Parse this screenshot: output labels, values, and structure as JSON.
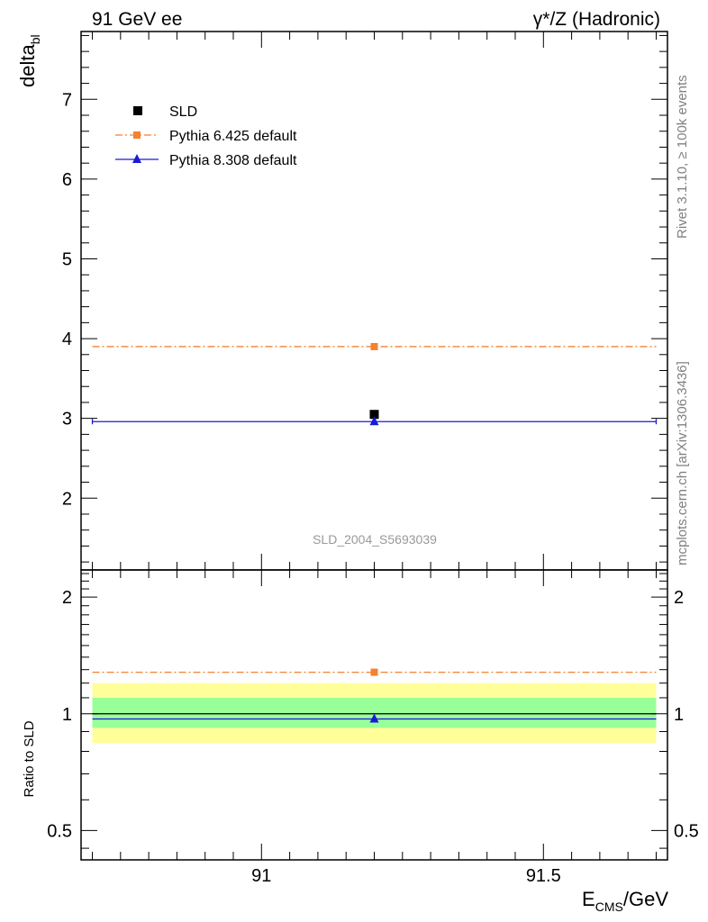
{
  "header": {
    "left": "91 GeV ee",
    "right": "γ*/Z (Hadronic)"
  },
  "side": {
    "rivet": "Rivet 3.1.10, ≥ 100k events",
    "mcplots": "mcplots.cern.ch [arXiv:1306.3436]"
  },
  "analysis_label": "SLD_2004_S5693039",
  "colors": {
    "data": "#000000",
    "pythia6": "#f5812f",
    "pythia8": "#1a1ad6",
    "band_inner": "#99ff99",
    "band_outer": "#ffff99",
    "frame": "#000000",
    "side_text": "#808080"
  },
  "chart_data": [
    {
      "type": "scatter",
      "panel": "main",
      "ylabel_main": "delta",
      "ylabel_sub": "bl",
      "xlim": [
        90.68,
        91.72
      ],
      "ylim": [
        1.1,
        7.85
      ],
      "yticks": [
        2,
        3,
        4,
        5,
        6,
        7
      ],
      "x_minor_step": 0.05,
      "y_minor_step": 0.2,
      "legend_position": "top-left",
      "series": [
        {
          "name": "SLD",
          "marker": "square",
          "x": [
            91.2
          ],
          "y": [
            3.05
          ]
        },
        {
          "name": "Pythia 6.425 default",
          "marker": "square",
          "line": "dash-dot",
          "x": [
            91.2
          ],
          "y": [
            3.9
          ],
          "xrange": [
            90.7,
            91.7
          ]
        },
        {
          "name": "Pythia 8.308 default",
          "marker": "triangle",
          "line": "solid",
          "x": [
            91.2
          ],
          "y": [
            2.96
          ],
          "xrange": [
            90.7,
            91.7
          ]
        }
      ]
    },
    {
      "type": "line",
      "panel": "ratio",
      "ylabel": "Ratio to SLD",
      "xlabel_main": "E",
      "xlabel_sub": "CMS",
      "xlabel_unit": "/GeV",
      "xlim": [
        90.68,
        91.72
      ],
      "ylim": [
        0.42,
        2.35
      ],
      "log_y": true,
      "xticks": [
        91,
        91.5
      ],
      "xtick_labels": [
        "91",
        "91.5"
      ],
      "yticks": [
        0.5,
        1,
        2
      ],
      "ytick_labels": [
        "0.5",
        "1",
        "2"
      ],
      "bands": {
        "inner": [
          0.92,
          1.1
        ],
        "outer": [
          0.84,
          1.2
        ]
      },
      "series": [
        {
          "name": "SLD",
          "x": [
            91.2
          ],
          "y": [
            1.0
          ]
        },
        {
          "name": "Pythia 6.425 default",
          "x": [
            91.2
          ],
          "y": [
            1.28
          ]
        },
        {
          "name": "Pythia 8.308 default",
          "x": [
            91.2
          ],
          "y": [
            0.97
          ]
        }
      ]
    }
  ]
}
